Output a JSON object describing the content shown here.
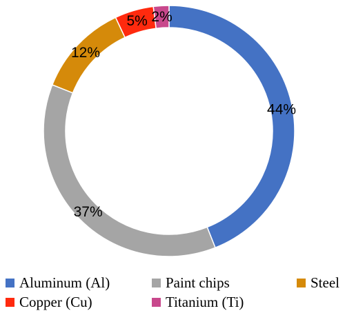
{
  "chart_data": {
    "type": "pie",
    "style": "donut",
    "categories": [
      "Aluminum (Al)",
      "Paint chips",
      "Steel",
      "Copper (Cu)",
      "Titanium (Ti)"
    ],
    "values": [
      44,
      37,
      12,
      5,
      2
    ],
    "labels": [
      "44%",
      "37%",
      "12%",
      "5%",
      "2%"
    ],
    "colors": [
      "#4472C4",
      "#A5A5A5",
      "#D58A0A",
      "#FF2A0E",
      "#C8488C"
    ],
    "start": "top, clockwise",
    "legend": "bottom",
    "title": ""
  }
}
